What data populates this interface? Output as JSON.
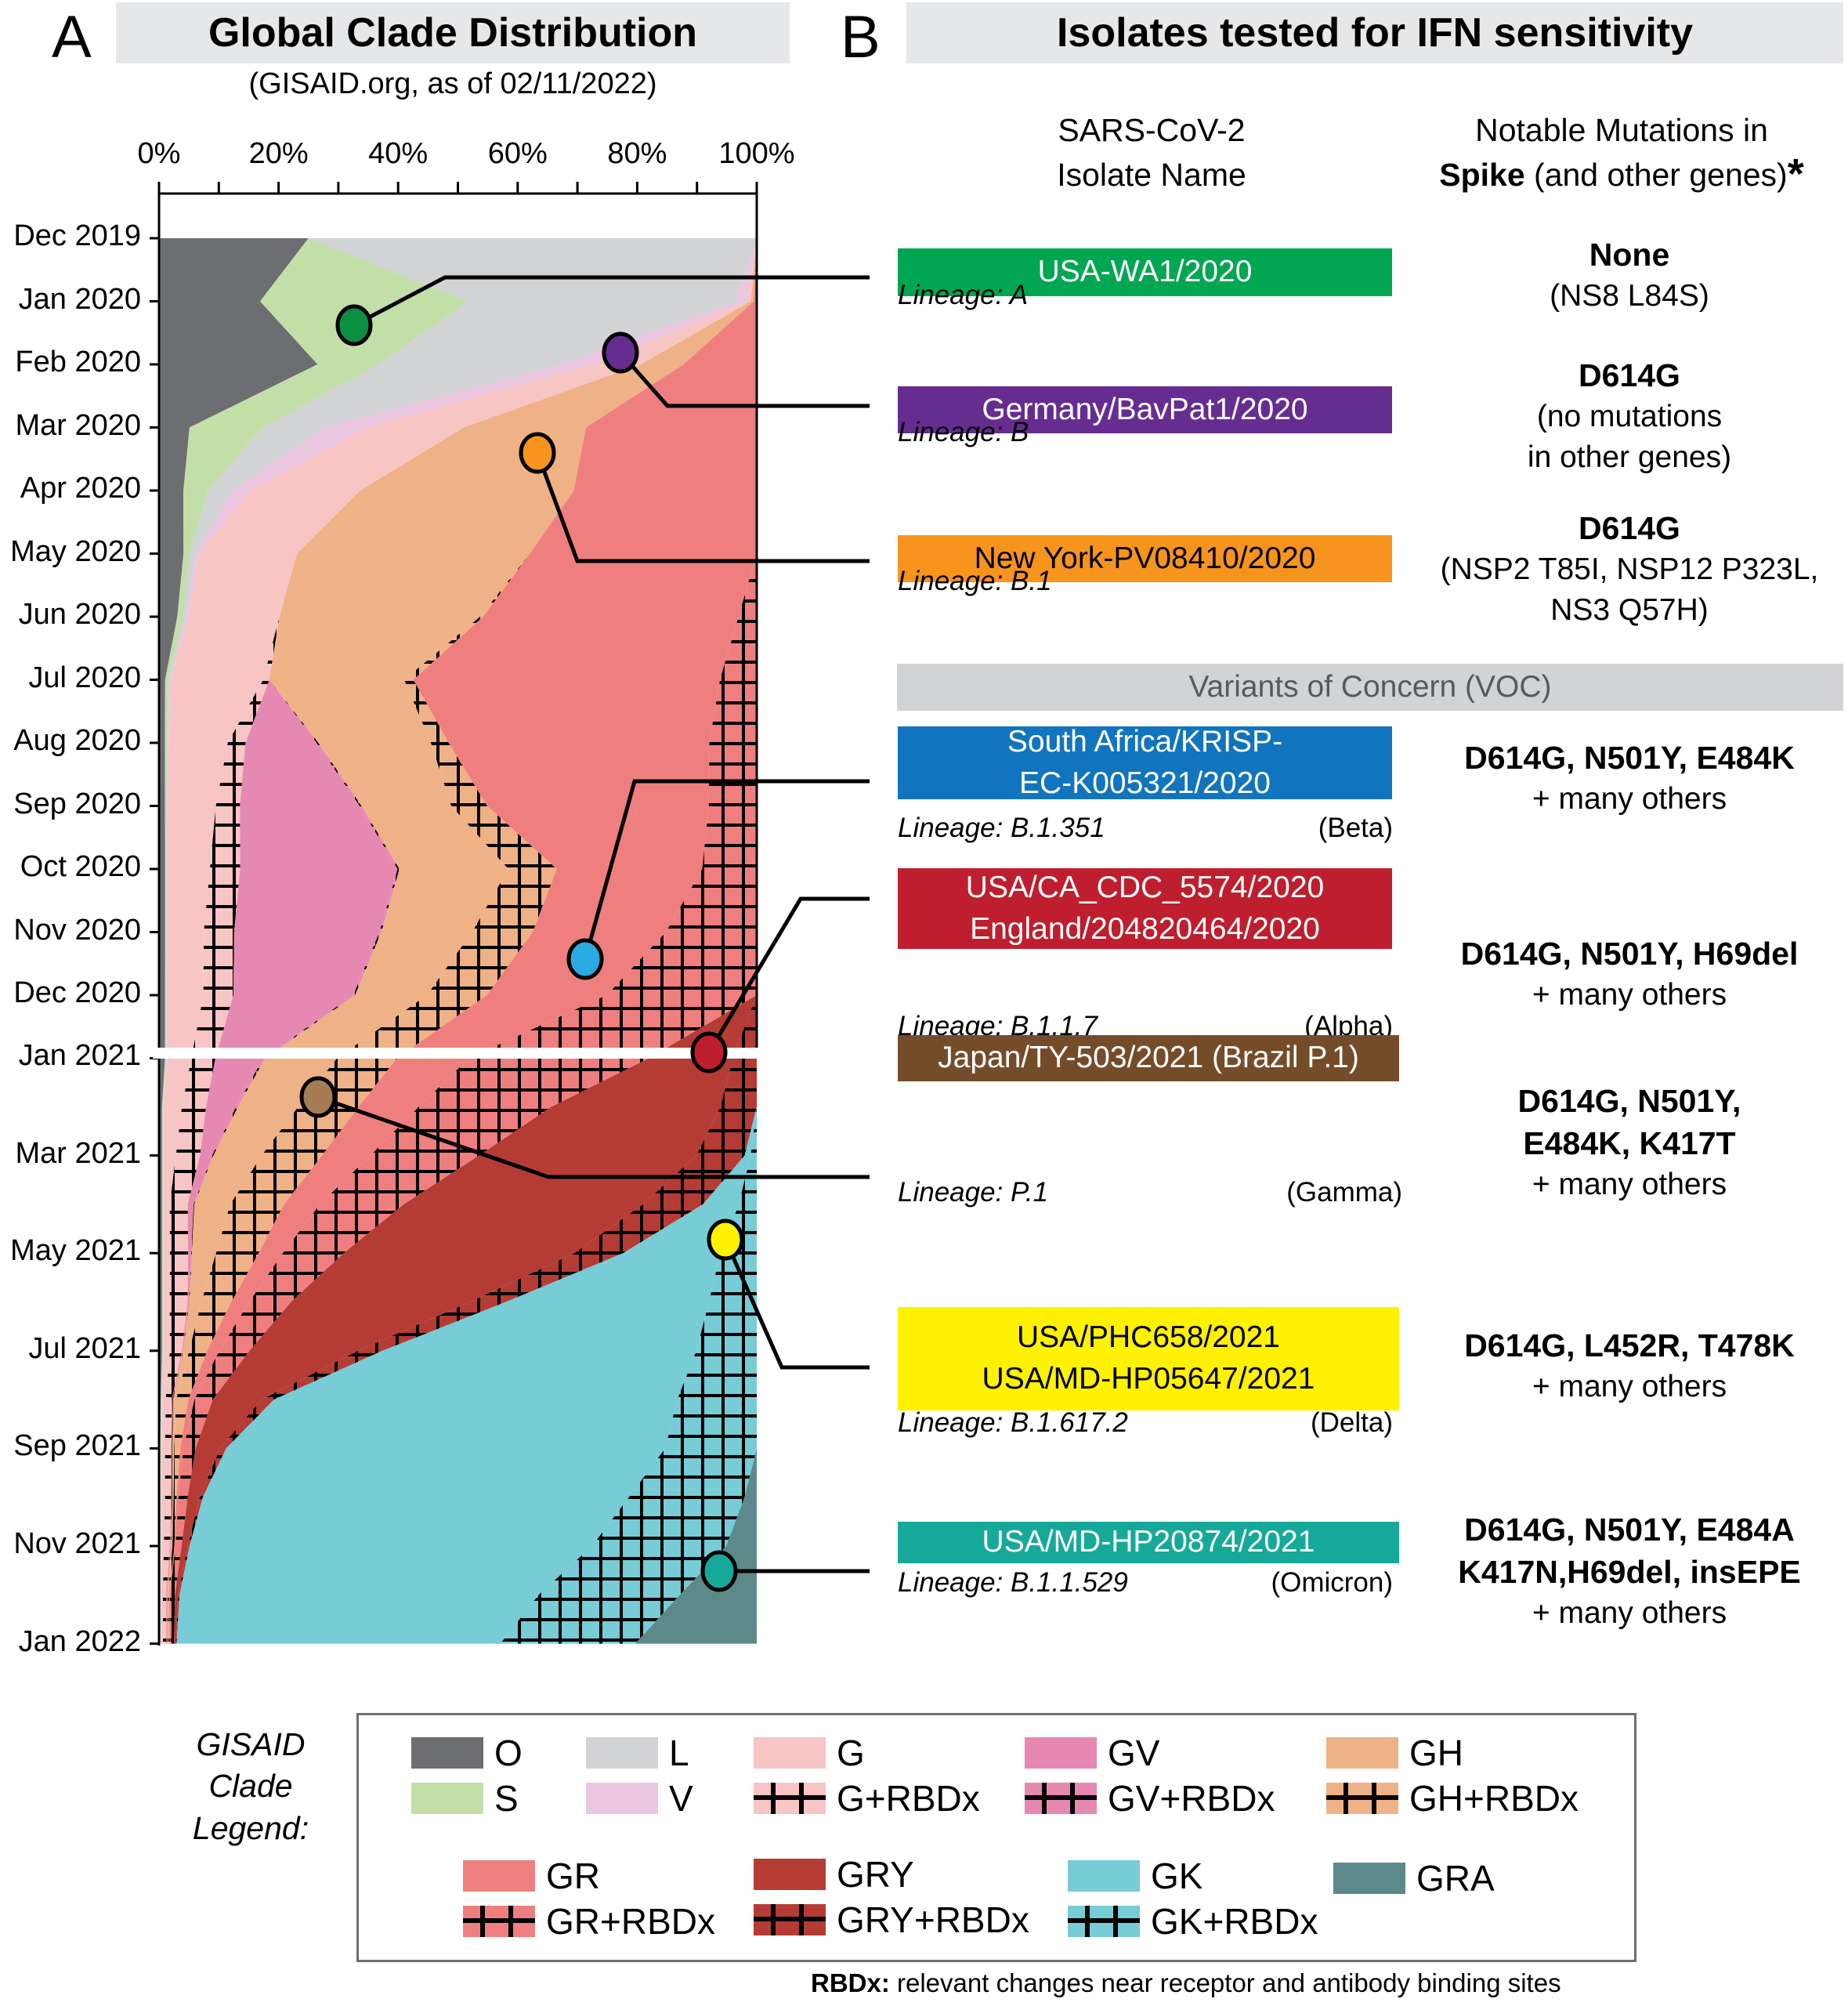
{
  "panelA": {
    "letter": "A",
    "title": "Global Clade Distribution",
    "subtitle": "(GISAID.org, as of 02/11/2022)"
  },
  "panelB": {
    "letter": "B",
    "title": "Isolates tested for IFN sensitivity",
    "col_isolate_line1": "SARS-CoV-2",
    "col_isolate_line2": "Isolate Name",
    "col_mut_line1": "Notable Mutations in",
    "col_mut_bold": "Spike",
    "col_mut_rest": " (and other genes)",
    "col_mut_asterisk": "*",
    "voc_header": "Variants of Concern (VOC)",
    "isolates": [
      {
        "names": [
          "USA-WA1/2020"
        ],
        "lineage": "Lineage: A",
        "variant": "",
        "color": "#00a651",
        "text_color": "#ffffff",
        "mut_main": [
          "None"
        ],
        "mut_sub": [
          "(NS8 L84S)"
        ]
      },
      {
        "names": [
          "Germany/BavPat1/2020"
        ],
        "lineage": "Lineage: B",
        "variant": "",
        "color": "#662d91",
        "text_color": "#ffffff",
        "mut_main": [
          "D614G"
        ],
        "mut_sub": [
          "(no mutations",
          "in other genes)"
        ]
      },
      {
        "names": [
          "New York-PV08410/2020"
        ],
        "lineage": "Lineage: B.1",
        "variant": "",
        "color": "#f7941d",
        "text_color": "#000000",
        "mut_main": [
          "D614G"
        ],
        "mut_sub": [
          "(NSP2 T85I, NSP12 P323L,",
          "NS3 Q57H)"
        ]
      },
      {
        "names": [
          "South Africa/KRISP-",
          "EC-K005321/2020"
        ],
        "lineage": "Lineage: B.1.351",
        "variant": "(Beta)",
        "color": "#1174be",
        "text_color": "#ffffff",
        "mut_main": [
          "D614G, N501Y, E484K"
        ],
        "mut_sub": [
          "+ many others"
        ]
      },
      {
        "names": [
          "USA/CA_CDC_5574/2020",
          "England/204820464/2020"
        ],
        "lineage": "Lineage: B.1.1.7",
        "variant": "(Alpha)",
        "color": "#be1e2d",
        "text_color": "#ffffff",
        "mut_main": [
          "D614G, N501Y, H69del"
        ],
        "mut_sub": [
          "+ many others"
        ]
      },
      {
        "names": [
          "Japan/TY-503/2021 (Brazil P.1)"
        ],
        "lineage": "Lineage: P.1",
        "variant": "(Gamma)",
        "color": "#754c29",
        "text_color": "#ffffff",
        "mut_main": [
          "D614G, N501Y,",
          "E484K, K417T"
        ],
        "mut_sub": [
          "+ many others"
        ]
      },
      {
        "names": [
          "USA/PHC658/2021",
          "USA/MD-HP05647/2021"
        ],
        "lineage": "Lineage: B.1.617.2",
        "variant": "(Delta)",
        "color": "#fff200",
        "text_color": "#000000",
        "mut_main": [
          "D614G, L452R, T478K"
        ],
        "mut_sub": [
          "+ many others"
        ]
      },
      {
        "names": [
          "USA/MD-HP20874/2021"
        ],
        "lineage": "Lineage: B.1.1.529",
        "variant": "(Omicron)",
        "color": "#16a99a",
        "text_color": "#ffffff",
        "mut_main": [
          "D614G, N501Y, E484A",
          "K417N,H69del, insEPE"
        ],
        "mut_sub": [
          "+ many others"
        ]
      }
    ]
  },
  "legend": {
    "label_lines": [
      "GISAID",
      "Clade",
      "Legend:"
    ],
    "items": [
      {
        "label": "O",
        "color": "#6d6e71",
        "hatch": false
      },
      {
        "label": "S",
        "color": "#c2dfa8",
        "hatch": false
      },
      {
        "label": "L",
        "color": "#d1d3d4",
        "hatch": false
      },
      {
        "label": "V",
        "color": "#ebc6e0",
        "hatch": false
      },
      {
        "label": "G",
        "color": "#f6c5c4",
        "hatch": false
      },
      {
        "label": "G+RBDx",
        "color": "#f6c5c4",
        "hatch": true
      },
      {
        "label": "GV",
        "color": "#e589b2",
        "hatch": false
      },
      {
        "label": "GV+RBDx",
        "color": "#e589b2",
        "hatch": true
      },
      {
        "label": "GH",
        "color": "#efb286",
        "hatch": false
      },
      {
        "label": "GH+RBDx",
        "color": "#efb286",
        "hatch": true
      },
      {
        "label": "GR",
        "color": "#ef7f7f",
        "hatch": false
      },
      {
        "label": "GR+RBDx",
        "color": "#ef7f7f",
        "hatch": true
      },
      {
        "label": "GRY",
        "color": "#b43c35",
        "hatch": false
      },
      {
        "label": "GRY+RBDx",
        "color": "#b43c35",
        "hatch": true
      },
      {
        "label": "GK",
        "color": "#77ccd6",
        "hatch": false
      },
      {
        "label": "GK+RBDx",
        "color": "#77ccd6",
        "hatch": true
      },
      {
        "label": "GRA",
        "color": "#5c8a8a",
        "hatch": false
      }
    ],
    "footnote_bold": "RBDx:",
    "footnote_rest": " relevant changes near receptor and antibody binding sites"
  },
  "chart_data": {
    "type": "area",
    "orientation": "vertical-stacked-percent",
    "title": "Global Clade Distribution",
    "subtitle": "(GISAID.org, as of 02/11/2022)",
    "xlabel": "",
    "ylabel": "",
    "x_ticks": [
      "0%",
      "20%",
      "40%",
      "60%",
      "80%",
      "100%"
    ],
    "xlim": [
      0,
      100
    ],
    "y_ticks_2020": [
      "Dec 2019",
      "Jan 2020",
      "Feb 2020",
      "Mar 2020",
      "Apr 2020",
      "May 2020",
      "Jun 2020",
      "Jul 2020",
      "Aug 2020",
      "Sep 2020",
      "Oct 2020",
      "Nov 2020",
      "Dec 2020",
      "Jan 2021"
    ],
    "y_ticks_2021": [
      "Jan 2021",
      "Mar 2021",
      "May 2021",
      "Jul 2021",
      "Sep 2021",
      "Nov 2021",
      "Jan 2022"
    ],
    "clade_order": [
      "O",
      "S",
      "L",
      "V",
      "G",
      "G+RBDx",
      "GV",
      "GV+RBDx",
      "GH",
      "GH+RBDx",
      "GR",
      "GR+RBDx",
      "GRY",
      "GRY+RBDx",
      "GK",
      "GK+RBDx",
      "GRA"
    ],
    "months": [
      "Dec 2019",
      "Jan 2020",
      "Feb 2020",
      "Mar 2020",
      "Apr 2020",
      "May 2020",
      "Jun 2020",
      "Jul 2020",
      "Aug 2020",
      "Sep 2020",
      "Oct 2020",
      "Nov 2020",
      "Dec 2020",
      "Jan 2021",
      "Feb 2021",
      "Mar 2021",
      "Apr 2021",
      "May 2021",
      "Jun 2021",
      "Jul 2021",
      "Aug 2021",
      "Sep 2021",
      "Oct 2021",
      "Nov 2021",
      "Dec 2021",
      "Jan 2022"
    ],
    "series": [
      {
        "name": "O",
        "values": [
          25,
          17,
          26,
          5,
          4,
          4,
          3,
          1,
          1,
          1,
          1,
          1,
          1,
          1,
          0.5,
          0.5,
          0.5,
          0.5,
          0.5,
          0.5,
          0.3,
          0.2,
          0.2,
          0.2,
          0.1,
          0.1
        ]
      },
      {
        "name": "S",
        "values": [
          0,
          35,
          10,
          12,
          4,
          1,
          1,
          0.5,
          0.3,
          0.2,
          0.2,
          0.2,
          0.2,
          0.2,
          0.1,
          0.1,
          0.1,
          0.1,
          0.1,
          0.1,
          0.1,
          0.1,
          0.1,
          0.1,
          0.1,
          0.1
        ]
      },
      {
        "name": "L",
        "values": [
          75,
          45,
          30,
          10,
          4,
          1,
          0.5,
          0.3,
          0.2,
          0.2,
          0.1,
          0.1,
          0.1,
          0.1,
          0.1,
          0.1,
          0.1,
          0.1,
          0.1,
          0.1,
          0.1,
          0.1,
          0.1,
          0.1,
          0.1,
          0.1
        ]
      },
      {
        "name": "V",
        "values": [
          0,
          2,
          5,
          7,
          3,
          0.5,
          0.3,
          0.2,
          0.1,
          0.1,
          0.1,
          0.1,
          0.1,
          0.1,
          0.1,
          0.1,
          0.1,
          0.1,
          0.1,
          0.1,
          0.1,
          0.1,
          0.1,
          0.1,
          0.1,
          0.1
        ]
      },
      {
        "name": "G",
        "values": [
          0,
          0.5,
          8,
          16,
          18,
          16,
          15,
          15,
          10,
          8,
          7,
          6,
          6,
          4,
          3,
          2,
          1,
          1,
          1,
          1,
          0.5,
          0.5,
          0.5,
          0.3,
          0.2,
          0.2
        ]
      },
      {
        "name": "G+RBDx",
        "values": [
          0,
          0,
          0,
          0,
          0,
          0,
          0,
          1,
          3,
          4,
          5,
          5,
          5,
          4,
          4,
          4,
          3,
          3,
          3,
          2,
          1,
          1,
          1,
          1,
          0.5,
          0.5
        ]
      },
      {
        "name": "GV",
        "values": [
          0,
          0,
          0,
          0,
          0,
          0,
          0,
          0,
          12,
          20,
          26,
          24,
          20,
          8,
          5,
          2,
          1,
          0.5,
          0.2,
          0.1,
          0.1,
          0.1,
          0.1,
          0.1,
          0.1,
          0.1
        ]
      },
      {
        "name": "GV+RBDx",
        "values": [
          0,
          0,
          0,
          0,
          0,
          0,
          0,
          0,
          0.3,
          0.3,
          0.3,
          0.3,
          0.3,
          0.3,
          0.3,
          0.2,
          0.1,
          0.1,
          0.1,
          0.1,
          0.1,
          0.1,
          0.1,
          0.1,
          0.1,
          0.1
        ]
      },
      {
        "name": "GH",
        "values": [
          0,
          0.5,
          7,
          20,
          35,
          38,
          33,
          22,
          19,
          15,
          18,
          15,
          12,
          12,
          10,
          8,
          6,
          4,
          2,
          1,
          0.5,
          0.3,
          0.2,
          0.2,
          0.1,
          0.1
        ]
      },
      {
        "name": "GH+RBDx",
        "values": [
          0,
          0,
          0,
          0,
          0,
          0,
          0.5,
          1.5,
          3,
          6,
          8,
          10,
          10,
          10,
          10,
          10,
          9,
          7,
          5,
          3,
          2,
          1,
          0.5,
          0.3,
          0.2,
          0.2
        ]
      },
      {
        "name": "GR",
        "values": [
          0,
          0.5,
          12,
          28,
          30,
          37,
          42,
          50,
          44,
          37,
          24,
          22,
          20,
          12,
          10,
          8,
          6,
          4,
          3,
          2,
          1,
          0.5,
          0.3,
          0.2,
          0.1,
          0.1
        ]
      },
      {
        "name": "GR+RBDx",
        "values": [
          0,
          0,
          0,
          0,
          0,
          0,
          3,
          6,
          8,
          8,
          9,
          15,
          25,
          30,
          22,
          18,
          14,
          10,
          7,
          5,
          3,
          2,
          1.5,
          1,
          0.8,
          0.5
        ]
      },
      {
        "name": "GRY",
        "values": [
          0,
          0,
          0,
          0,
          0,
          0,
          0,
          0,
          0,
          0,
          0,
          0,
          0,
          14,
          28,
          36,
          40,
          38,
          30,
          18,
          8,
          4,
          2,
          1,
          0.5,
          0.3
        ]
      },
      {
        "name": "GRY+RBDx",
        "values": [
          0,
          0,
          0,
          0,
          0,
          0,
          0,
          0,
          0,
          0,
          0,
          0,
          0,
          4,
          6,
          8,
          10,
          8,
          6,
          4,
          2,
          1,
          0.5,
          0.3,
          0.2,
          0.1
        ]
      },
      {
        "name": "GK",
        "values": [
          0,
          0,
          0,
          0,
          0,
          0,
          0,
          0,
          0,
          0,
          0,
          0,
          0,
          0,
          0,
          1,
          6,
          16,
          34,
          52,
          66,
          72,
          70,
          66,
          56,
          48
        ]
      },
      {
        "name": "GK+RBDx",
        "values": [
          0,
          0,
          0,
          0,
          0,
          0,
          0,
          0,
          0,
          0,
          0,
          0,
          0,
          0,
          0,
          1,
          3,
          6,
          8,
          10,
          13,
          15,
          19,
          22,
          22,
          20
        ]
      },
      {
        "name": "GRA",
        "values": [
          0,
          0,
          0,
          0,
          0,
          0,
          0,
          0,
          0,
          0,
          0,
          0,
          0,
          0,
          0,
          0,
          0,
          0,
          0,
          0,
          0,
          0,
          2,
          5,
          12,
          18
        ]
      }
    ],
    "grid": false,
    "legend_position": "bottom",
    "isolate_markers": [
      {
        "isolate": "USA-WA1/2020",
        "month": "Jan 2020",
        "clade": "S",
        "color": "#0a8f43"
      },
      {
        "isolate": "Germany/BavPat1/2020",
        "month": "Feb 2020",
        "clade": "G",
        "color": "#662d91"
      },
      {
        "isolate": "New York-PV08410/2020",
        "month": "Mar 2020",
        "clade": "GH",
        "color": "#f7941d"
      },
      {
        "isolate": "South Africa/KRISP-EC-K005321/2020",
        "month": "Dec 2020",
        "clade": "GH+RBDx",
        "color": "#29abe2"
      },
      {
        "isolate": "USA/CA_CDC_5574/2020",
        "month": "Jan 2021",
        "clade": "GRY",
        "color": "#be1e2d"
      },
      {
        "isolate": "Japan/TY-503/2021 (Brazil P.1)",
        "month": "Feb 2021",
        "clade": "GR+RBDx",
        "color": "#a67c52"
      },
      {
        "isolate": "USA/PHC658/2021",
        "month": "May 2021",
        "clade": "GK",
        "color": "#fff200"
      },
      {
        "isolate": "USA/MD-HP20874/2021",
        "month": "Dec 2021",
        "clade": "GRA",
        "color": "#16a99a"
      }
    ]
  }
}
